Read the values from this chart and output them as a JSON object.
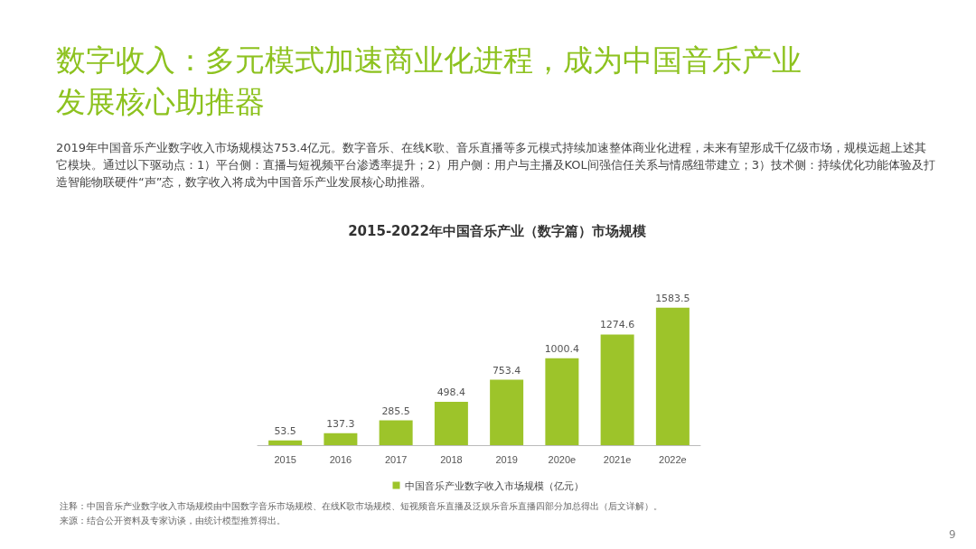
{
  "chart_data": {
    "type": "bar",
    "title": "2015-2022年中国音乐产业（数字篇）市场规模",
    "categories": [
      "2015",
      "2016",
      "2017",
      "2018",
      "2019",
      "2020e",
      "2021e",
      "2022e"
    ],
    "series": [
      {
        "name": "中国音乐产业数字收入市场规模（亿元）",
        "color": "#9dc42a",
        "values": [
          53.5,
          137.3,
          285.5,
          498.4,
          753.4,
          1000.4,
          1274.6,
          1583.5
        ]
      }
    ],
    "data_labels": true,
    "legend": "bottom",
    "annotations": [
      "数字收入：多元模式加速商业化进程，成为中国音乐产业发展核心助推器",
      "2019年中国音乐产业数字收入市场规模达753.4亿元。数字音乐、在线K歌、音乐直播等多元模式持续加速整体商业化进程，未来有望形成千亿级市场，规模远超上述其它模块。通过以下驱动点：1）平台侧：直播与短视频平台渗透率提升；2）用户侧：用户与主播及KOL间强信任关系与情感纽带建立；3）技术侧：持续优化功能体验及打造智能物联硬件“声”态，数字收入将成为中国音乐产业发展核心助推器。",
      "注释：中国音乐产业数字收入市场规模由中国数字音乐市场规模、在线K歌市场规模、短视频音乐直播及泛娱乐音乐直播四部分加总得出（后文详解）。",
      "来源：结合公开资料及专家访谈，由统计模型推算得出。",
      "9"
    ]
  }
}
